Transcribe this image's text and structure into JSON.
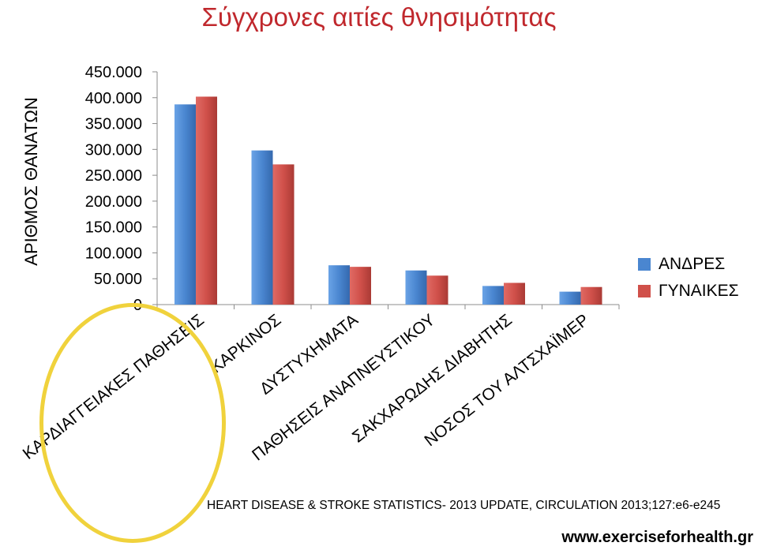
{
  "slide": {
    "title": "Σύγχρονες αιτίες θνησιμότητας",
    "source": "HEART DISEASE & STROKE STATISTICS- 2013 UPDATE, CIRCULATION 2013;127:e6-e245",
    "website": "www.exerciseforhealth.gr",
    "highlight_color": "#f0d23c"
  },
  "chart_data": {
    "type": "bar",
    "title": "Σύγχρονες αιτίες θνησιμότητας",
    "ylabel": "ΑΡΙΘΜΟΣ ΘΑΝΑΤΩΝ",
    "xlabel": "",
    "ylim": [
      0,
      450000
    ],
    "yticks": [
      0,
      50000,
      100000,
      150000,
      200000,
      250000,
      300000,
      350000,
      400000,
      450000
    ],
    "ytick_labels": [
      "0",
      "50.000",
      "100.000",
      "150.000",
      "200.000",
      "250.000",
      "300.000",
      "350.000",
      "400.000",
      "450.000"
    ],
    "categories": [
      "ΚΑΡΔΙΑΓΓΕΙΑΚΕΣ ΠΑΘΗΣΕΙΣ",
      "ΚΑΡΚΙΝΟΣ",
      "ΔΥΣΤΥΧΗΜΑΤΑ",
      "ΠΑΘΗΣΕΙΣ ΑΝΑΠΝΕΥΣΤΙΚΟΥ",
      "ΣΑΚΧΑΡΩΔΗΣ ΔΙΑΒΗΤΗΣ",
      "ΝΟΣΟΣ ΤΟΥ ΑΛΤΣΧΑΪΜΕΡ"
    ],
    "series": [
      {
        "name": "ΑΝΔΡΕΣ",
        "color": "#4a86d0",
        "values": [
          387000,
          298000,
          76000,
          66000,
          36000,
          25000
        ]
      },
      {
        "name": "ΓΥΝΑΙΚΕΣ",
        "color": "#d0504a",
        "values": [
          402000,
          271000,
          73000,
          56000,
          42000,
          34000
        ]
      }
    ],
    "grid": false,
    "legend": "right"
  }
}
